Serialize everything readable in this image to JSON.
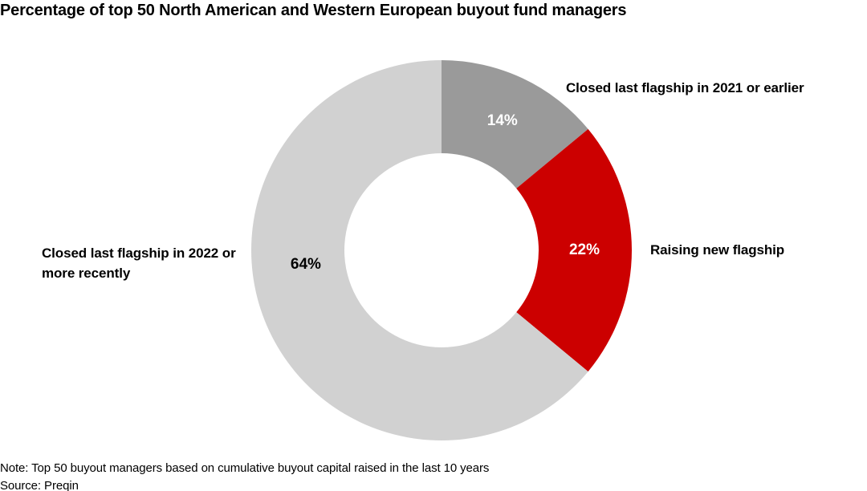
{
  "title": "Percentage of top 50 North American and Western European buyout fund managers",
  "note": "Note: Top 50 buyout managers based on cumulative buyout capital raised in the last 10 years",
  "source": "Source: Preqin",
  "colors": {
    "background": "#ffffff",
    "text": "#000000",
    "accent_red": "#cc0000",
    "dark_gray": "#9a9a9a",
    "light_gray": "#d1d1d1"
  },
  "chart_data": {
    "type": "pie",
    "subtype": "donut",
    "title": "Percentage of top 50 North American and Western European buyout fund managers",
    "units": "%",
    "total": 100,
    "start_angle_deg": 0,
    "direction": "clockwise",
    "inner_radius_ratio": 0.51,
    "legend_position": "none",
    "labels_outside": true,
    "slices": [
      {
        "label": "Closed last flagship in 2021 or earlier",
        "value": 14,
        "value_label": "14%",
        "color": "#9a9a9a",
        "value_label_color": "#ffffff"
      },
      {
        "label": "Raising new flagship",
        "value": 22,
        "value_label": "22%",
        "color": "#cc0000",
        "value_label_color": "#ffffff"
      },
      {
        "label": "Closed last flagship in 2022 or more recently",
        "value": 64,
        "value_label": "64%",
        "color": "#d1d1d1",
        "value_label_color": "#000000"
      }
    ]
  }
}
